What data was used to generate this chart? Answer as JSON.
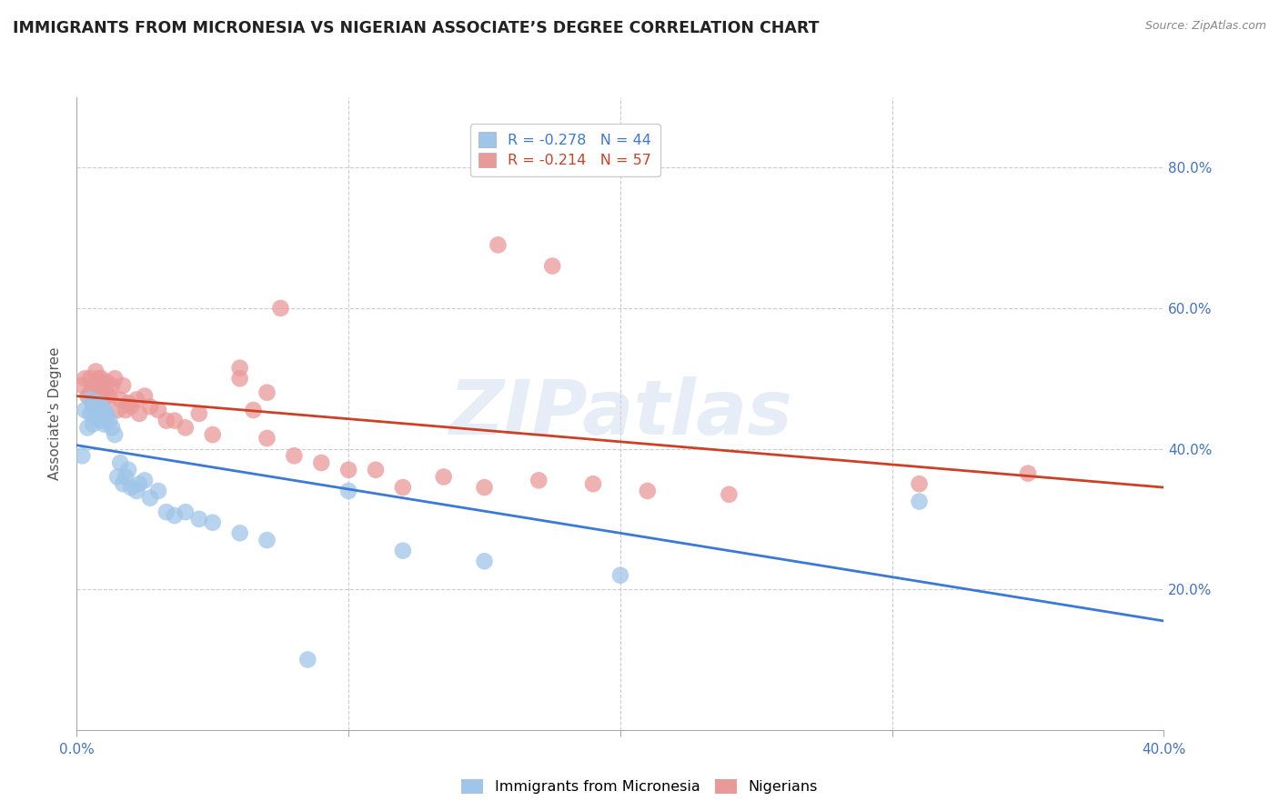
{
  "title": "IMMIGRANTS FROM MICRONESIA VS NIGERIAN ASSOCIATE’S DEGREE CORRELATION CHART",
  "source": "Source: ZipAtlas.com",
  "ylabel": "Associate's Degree",
  "xlim": [
    0.0,
    0.4
  ],
  "ylim": [
    0.0,
    0.9
  ],
  "xticks": [
    0.0,
    0.1,
    0.2,
    0.3,
    0.4
  ],
  "xtick_labels": [
    "0.0%",
    "",
    "",
    "",
    "40.0%"
  ],
  "yticks": [
    0.2,
    0.4,
    0.6,
    0.8
  ],
  "ytick_labels_right": [
    "20.0%",
    "40.0%",
    "60.0%",
    "80.0%"
  ],
  "legend1_r": "R = -0.278",
  "legend1_n": "N = 44",
  "legend2_r": "R = -0.214",
  "legend2_n": "N = 57",
  "blue_color": "#9fc5e8",
  "pink_color": "#ea9999",
  "line_blue": "#3c78d8",
  "line_pink": "#cc4125",
  "watermark": "ZIPatlas",
  "blue_line_x": [
    0.0,
    0.4
  ],
  "blue_line_y": [
    0.405,
    0.155
  ],
  "pink_line_x": [
    0.0,
    0.4
  ],
  "pink_line_y": [
    0.475,
    0.345
  ],
  "blue_scatter_x": [
    0.002,
    0.003,
    0.004,
    0.005,
    0.005,
    0.006,
    0.006,
    0.007,
    0.007,
    0.008,
    0.008,
    0.009,
    0.009,
    0.01,
    0.01,
    0.011,
    0.011,
    0.012,
    0.013,
    0.014,
    0.015,
    0.016,
    0.017,
    0.018,
    0.019,
    0.02,
    0.022,
    0.023,
    0.025,
    0.027,
    0.03,
    0.033,
    0.036,
    0.04,
    0.045,
    0.05,
    0.06,
    0.07,
    0.085,
    0.1,
    0.12,
    0.15,
    0.2,
    0.31
  ],
  "blue_scatter_y": [
    0.39,
    0.455,
    0.43,
    0.47,
    0.45,
    0.46,
    0.435,
    0.455,
    0.445,
    0.465,
    0.45,
    0.44,
    0.46,
    0.455,
    0.435,
    0.45,
    0.445,
    0.44,
    0.43,
    0.42,
    0.36,
    0.38,
    0.35,
    0.36,
    0.37,
    0.345,
    0.34,
    0.35,
    0.355,
    0.33,
    0.34,
    0.31,
    0.305,
    0.31,
    0.3,
    0.295,
    0.28,
    0.27,
    0.1,
    0.34,
    0.255,
    0.24,
    0.22,
    0.325
  ],
  "pink_scatter_x": [
    0.002,
    0.003,
    0.004,
    0.005,
    0.005,
    0.006,
    0.006,
    0.007,
    0.007,
    0.008,
    0.008,
    0.009,
    0.009,
    0.01,
    0.01,
    0.011,
    0.011,
    0.012,
    0.013,
    0.014,
    0.015,
    0.016,
    0.017,
    0.018,
    0.019,
    0.02,
    0.022,
    0.023,
    0.025,
    0.027,
    0.03,
    0.033,
    0.036,
    0.04,
    0.045,
    0.05,
    0.06,
    0.065,
    0.07,
    0.08,
    0.09,
    0.1,
    0.11,
    0.12,
    0.135,
    0.15,
    0.17,
    0.19,
    0.21,
    0.24,
    0.155,
    0.175,
    0.06,
    0.07,
    0.075,
    0.31,
    0.35
  ],
  "pink_scatter_y": [
    0.49,
    0.5,
    0.475,
    0.48,
    0.5,
    0.49,
    0.465,
    0.51,
    0.48,
    0.5,
    0.475,
    0.49,
    0.5,
    0.485,
    0.47,
    0.495,
    0.48,
    0.475,
    0.49,
    0.5,
    0.455,
    0.47,
    0.49,
    0.455,
    0.465,
    0.46,
    0.47,
    0.45,
    0.475,
    0.46,
    0.455,
    0.44,
    0.44,
    0.43,
    0.45,
    0.42,
    0.5,
    0.455,
    0.415,
    0.39,
    0.38,
    0.37,
    0.37,
    0.345,
    0.36,
    0.345,
    0.355,
    0.35,
    0.34,
    0.335,
    0.69,
    0.66,
    0.515,
    0.48,
    0.6,
    0.35,
    0.365
  ]
}
